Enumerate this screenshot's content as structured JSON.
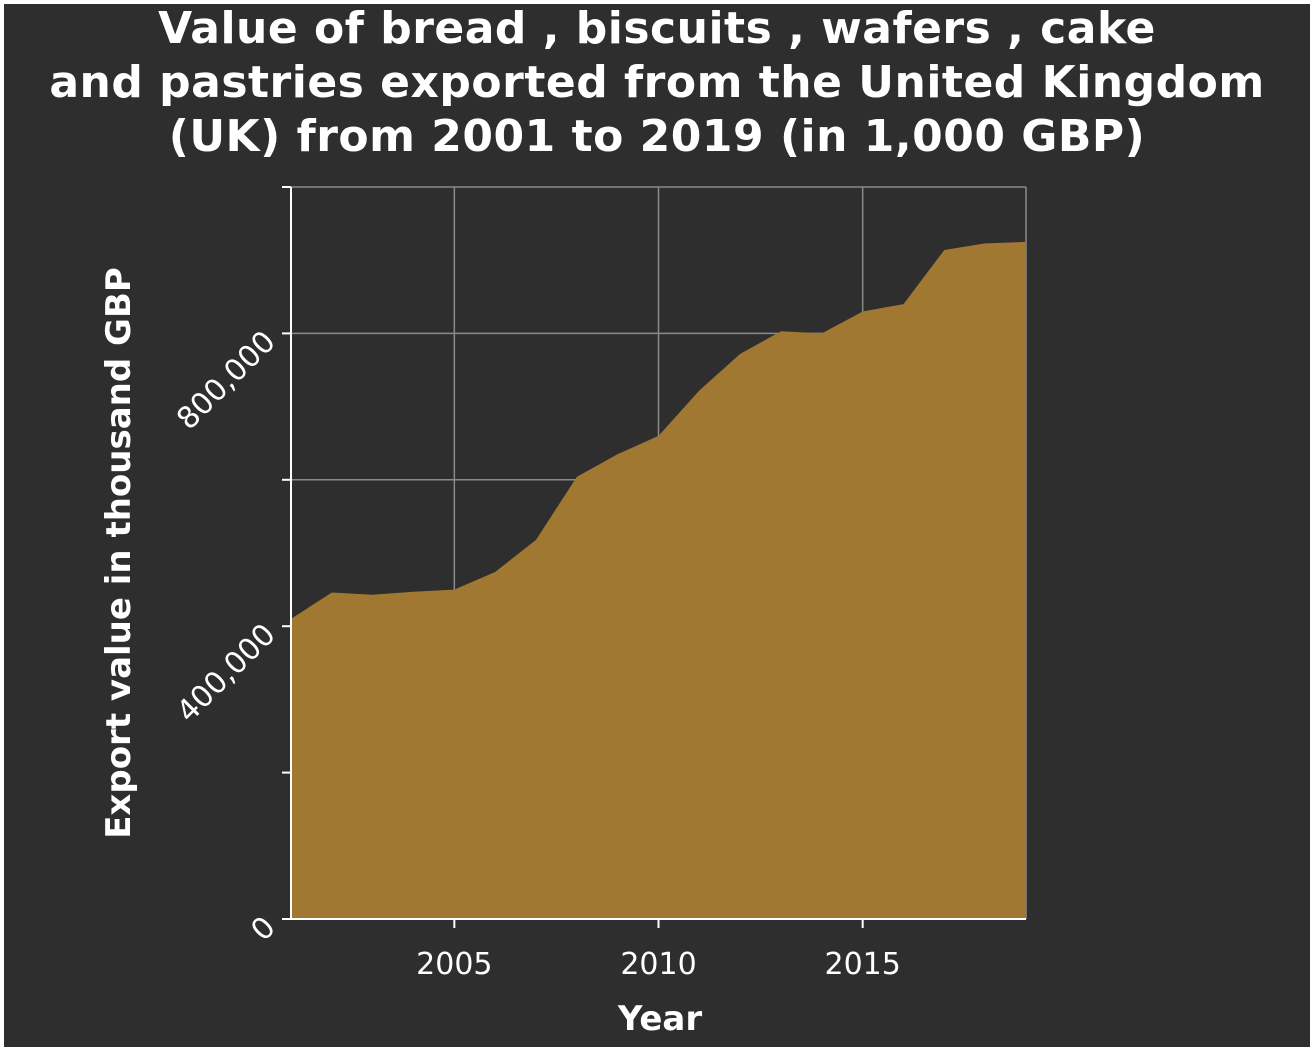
{
  "chart_data": {
    "type": "area",
    "title_lines": [
      "Value of bread , biscuits , wafers , cake",
      "and pastries exported from the United Kingdom",
      "(UK) from 2001 to 2019 (in 1,000 GBP)"
    ],
    "xlabel": "Year",
    "ylabel": "Export value in thousand GBP",
    "xlim": [
      2001,
      2019
    ],
    "ylim": [
      0,
      1000000
    ],
    "x_ticks": [
      2005,
      2010,
      2015
    ],
    "x_tick_labels": [
      "2005",
      "2010",
      "2015"
    ],
    "y_ticks_minor": [
      200000,
      600000,
      1000000
    ],
    "y_ticks": [
      0,
      400000,
      800000
    ],
    "y_tick_labels": [
      "0",
      "400,000",
      "800,000"
    ],
    "grid": true,
    "fill_color": "#a07832",
    "background_color": "#2e2e2e",
    "x": [
      2001,
      2002,
      2003,
      2004,
      2005,
      2006,
      2007,
      2008,
      2009,
      2010,
      2011,
      2012,
      2013,
      2014,
      2015,
      2016,
      2017,
      2018,
      2019
    ],
    "values": [
      410000,
      446000,
      443000,
      447000,
      450000,
      474000,
      518000,
      604000,
      635000,
      660000,
      722000,
      772000,
      803000,
      800000,
      830000,
      840000,
      914000,
      923000,
      925000
    ]
  }
}
